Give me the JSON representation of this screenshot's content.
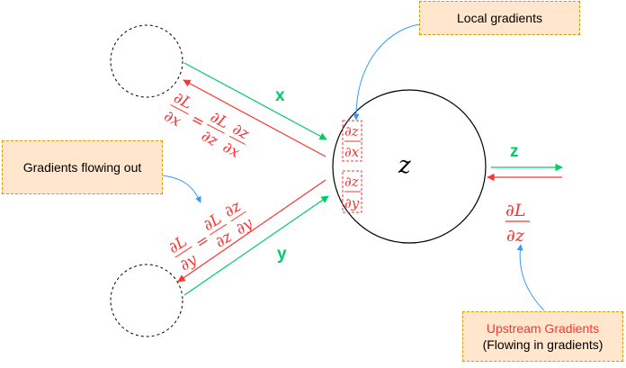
{
  "callouts": {
    "local": "Local gradients",
    "out": "Gradients flowing out",
    "upstream_title": "Upstream Gradients",
    "upstream_sub": "(Flowing in gradients)"
  },
  "node": {
    "label": "z"
  },
  "edges": {
    "x": "x",
    "y": "y",
    "z": "z"
  },
  "math": {
    "partial": "∂",
    "L": "L",
    "z": "z",
    "x": "x",
    "y": "y",
    "equals": "="
  },
  "colors": {
    "red": "#ff3333",
    "green": "#00cc66",
    "blue": "#3399ff",
    "callout_fill": "#ffe6cc",
    "callout_border": "#d79b00"
  }
}
